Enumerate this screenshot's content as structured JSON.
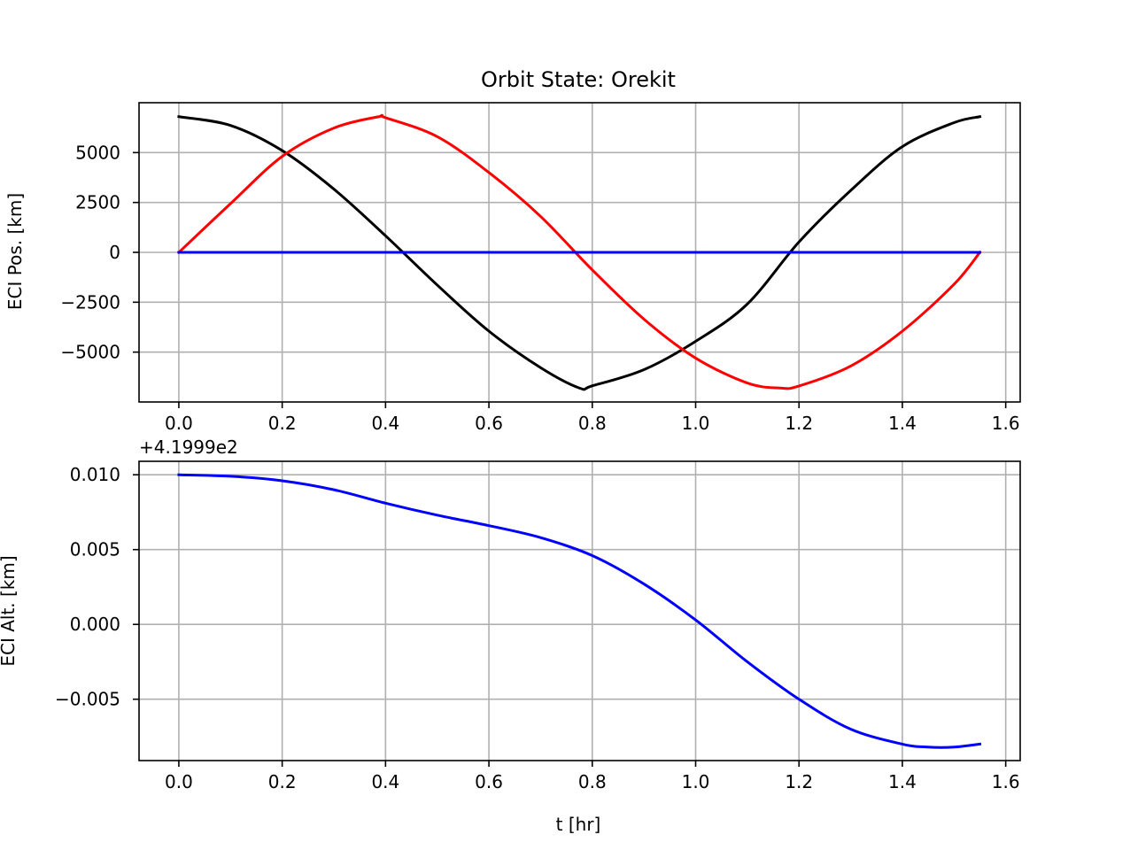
{
  "chart_data": [
    {
      "type": "line",
      "title": "Orbit State: Orekit",
      "xlabel": "",
      "ylabel": "ECI Pos. [km]",
      "xlim": [
        -0.077,
        1.628
      ],
      "ylim": [
        -7500,
        7500
      ],
      "xticks": [
        "0.0",
        "0.2",
        "0.4",
        "0.6",
        "0.8",
        "1.0",
        "1.2",
        "1.4",
        "1.6"
      ],
      "yticks": [
        "5000",
        "2500",
        "0",
        "−2500",
        "−5000"
      ],
      "grid": true,
      "series": [
        {
          "color": "#000000",
          "x": [
            0.0,
            0.1,
            0.2,
            0.3,
            0.4,
            0.5,
            0.6,
            0.7,
            0.775,
            0.8,
            0.9,
            1.0,
            1.1,
            1.2,
            1.3,
            1.4,
            1.5,
            1.55
          ],
          "y": [
            6800,
            6360,
            5100,
            3170,
            830,
            -1640,
            -3950,
            -5780,
            -6800,
            -6690,
            -5880,
            -4460,
            -2590,
            520,
            3100,
            5300,
            6500,
            6800
          ]
        },
        {
          "color": "#ff0000",
          "x": [
            0.0,
            0.1,
            0.2,
            0.3,
            0.387,
            0.4,
            0.5,
            0.6,
            0.7,
            0.8,
            0.9,
            1.0,
            1.1,
            1.163,
            1.2,
            1.3,
            1.4,
            1.5,
            1.55
          ],
          "y": [
            0,
            2440,
            4810,
            6230,
            6800,
            6750,
            5800,
            4000,
            1800,
            -880,
            -3350,
            -5300,
            -6550,
            -6800,
            -6700,
            -5700,
            -3950,
            -1600,
            0
          ]
        },
        {
          "color": "#0000ff",
          "x": [
            0.0,
            1.55
          ],
          "y": [
            0,
            0
          ]
        }
      ]
    },
    {
      "type": "line",
      "title": "",
      "offset_label": "+4.1999e2",
      "xlabel": "t [hr]",
      "ylabel": "ECI Alt. [km]",
      "xlim": [
        -0.077,
        1.628
      ],
      "ylim": [
        -0.0091,
        0.0109
      ],
      "xticks": [
        "0.0",
        "0.2",
        "0.4",
        "0.6",
        "0.8",
        "1.0",
        "1.2",
        "1.4",
        "1.6"
      ],
      "yticks": [
        "0.010",
        "0.005",
        "0.000",
        "−0.005"
      ],
      "grid": true,
      "series": [
        {
          "color": "#0000ff",
          "x": [
            0.0,
            0.1,
            0.2,
            0.3,
            0.4,
            0.5,
            0.6,
            0.7,
            0.8,
            0.9,
            1.0,
            1.1,
            1.2,
            1.3,
            1.4,
            1.45,
            1.5,
            1.55
          ],
          "y": [
            0.01,
            0.0099,
            0.0096,
            0.009,
            0.0081,
            0.0073,
            0.0066,
            0.0058,
            0.0046,
            0.0027,
            0.0003,
            -0.0025,
            -0.005,
            -0.007,
            -0.008,
            -0.0082,
            -0.0082,
            -0.008
          ]
        }
      ]
    }
  ]
}
